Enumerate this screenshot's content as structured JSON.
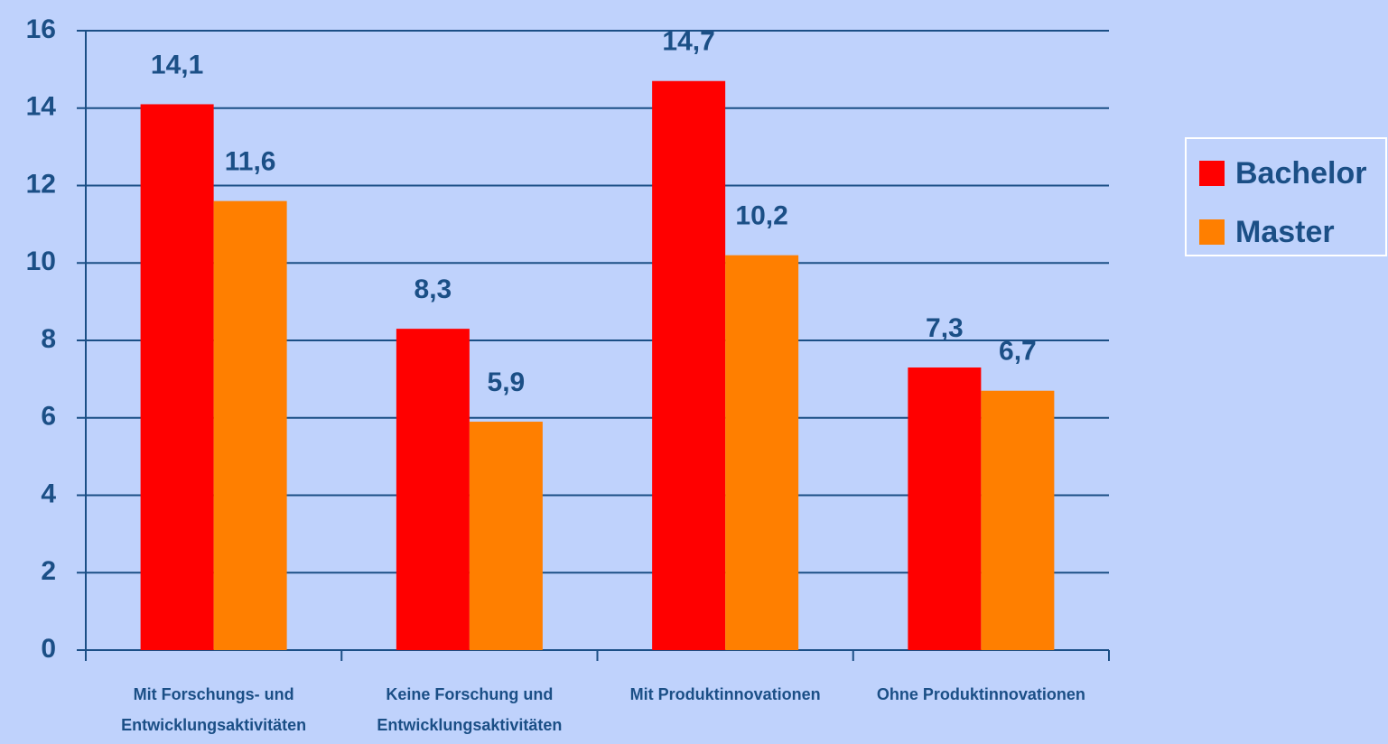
{
  "chart_data": {
    "type": "bar",
    "categories": [
      "Mit Forschungs- und Entwicklungsaktivitäten",
      "Keine Forschung und Entwicklungsaktivitäten",
      "Mit Produktinnovationen",
      "Ohne Produktinnovationen"
    ],
    "series": [
      {
        "name": "Bachelor",
        "color": "#ff0000",
        "values": [
          14.1,
          8.3,
          14.7,
          7.3
        ],
        "value_labels": [
          "14,1",
          "8,3",
          "14,7",
          "7,3"
        ]
      },
      {
        "name": "Master",
        "color": "#ff7f00",
        "values": [
          11.6,
          5.9,
          10.2,
          6.7
        ],
        "value_labels": [
          "11,6",
          "5,9",
          "10,2",
          "6,7"
        ]
      }
    ],
    "ylim": [
      0,
      16
    ],
    "yticks": [
      0,
      2,
      4,
      6,
      8,
      10,
      12,
      14,
      16
    ],
    "grid": true,
    "legend": "right"
  }
}
